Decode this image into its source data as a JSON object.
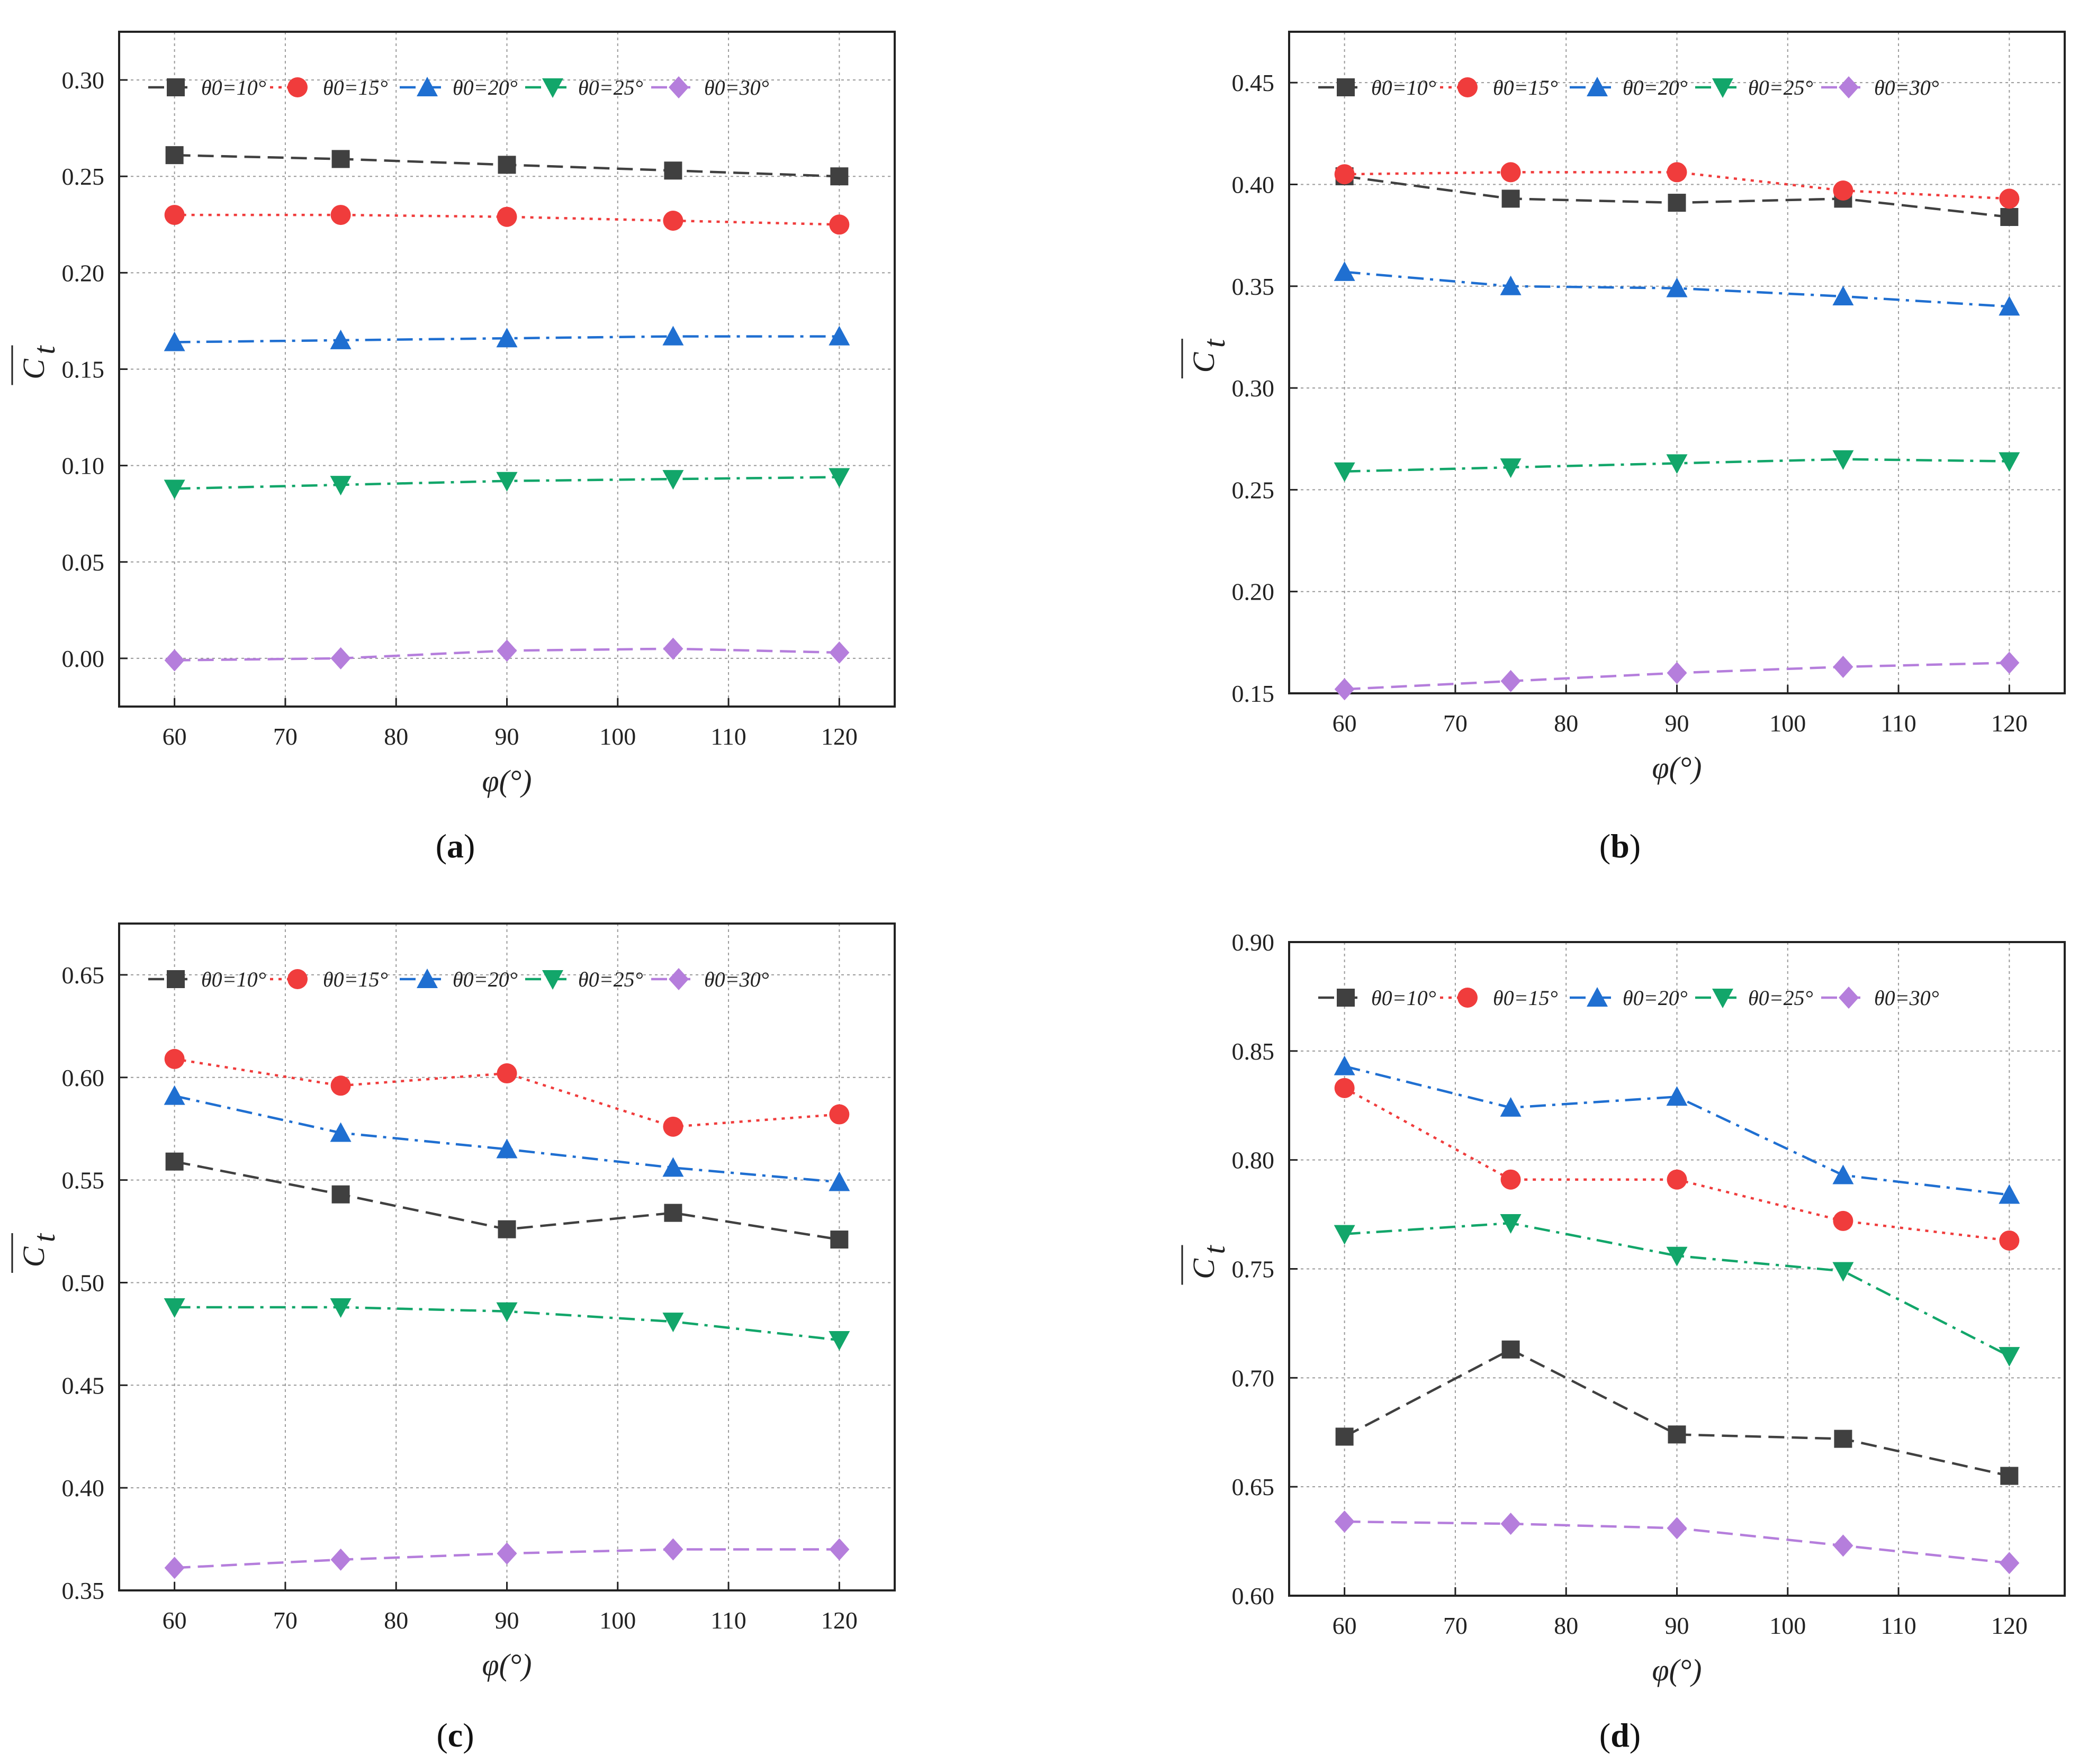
{
  "figure": {
    "series_names": [
      "θ0=10°",
      "θ0=15°",
      "θ0=20°",
      "θ0=25°",
      "θ0=30°"
    ],
    "series_styles": [
      {
        "color": "#404040",
        "marker": "square",
        "dash": "dashed"
      },
      {
        "color": "#F03C3C",
        "marker": "circle",
        "dash": "dotted"
      },
      {
        "color": "#1F6FD1",
        "marker": "triangle-up",
        "dash": "dash-dot"
      },
      {
        "color": "#12A66A",
        "marker": "triangle-down",
        "dash": "dash-dot"
      },
      {
        "color": "#B57EDC",
        "marker": "diamond",
        "dash": "dashed"
      }
    ]
  },
  "chart_data": [
    {
      "type": "line",
      "caption": "a",
      "xlabel": "φ(°)",
      "ylabel": "C",
      "ylabel_subscript": "t",
      "xlim": [
        55,
        125
      ],
      "ylim": [
        -0.025,
        0.325
      ],
      "xticks": [
        60,
        70,
        80,
        90,
        100,
        110,
        120
      ],
      "xtick_labels": [
        "60",
        "70",
        "80",
        "90",
        "100",
        "110",
        "120"
      ],
      "yticks": [
        0,
        0.05,
        0.1,
        0.15,
        0.2,
        0.25,
        0.3
      ],
      "ytick_labels": [
        "0.00",
        "0.05",
        "0.10",
        "0.15",
        "0.20",
        "0.25",
        "0.30"
      ],
      "grid": true,
      "legend": "top",
      "x": [
        60,
        75,
        90,
        105,
        120
      ],
      "series": [
        {
          "name": "θ0=10°",
          "values": [
            0.261,
            0.259,
            0.256,
            0.253,
            0.25
          ]
        },
        {
          "name": "θ0=15°",
          "values": [
            0.23,
            0.23,
            0.229,
            0.227,
            0.225
          ]
        },
        {
          "name": "θ0=20°",
          "values": [
            0.164,
            0.165,
            0.166,
            0.167,
            0.167
          ]
        },
        {
          "name": "θ0=25°",
          "values": [
            0.088,
            0.09,
            0.092,
            0.093,
            0.094
          ]
        },
        {
          "name": "θ0=30°",
          "values": [
            -0.001,
            0.0,
            0.004,
            0.005,
            0.003
          ]
        }
      ]
    },
    {
      "type": "line",
      "caption": "b",
      "xlabel": "φ(°)",
      "ylabel": "C",
      "ylabel_subscript": "t",
      "xlim": [
        55,
        125
      ],
      "ylim": [
        0.15,
        0.475
      ],
      "xticks": [
        60,
        70,
        80,
        90,
        100,
        110,
        120
      ],
      "xtick_labels": [
        "60",
        "70",
        "80",
        "90",
        "100",
        "110",
        "120"
      ],
      "yticks": [
        0.15,
        0.2,
        0.25,
        0.3,
        0.35,
        0.4,
        0.45
      ],
      "ytick_labels": [
        "0.15",
        "0.20",
        "0.25",
        "0.30",
        "0.35",
        "0.40",
        "0.45"
      ],
      "grid": true,
      "legend": "top",
      "x": [
        60,
        75,
        90,
        105,
        120
      ],
      "series": [
        {
          "name": "θ0=10°",
          "values": [
            0.404,
            0.393,
            0.391,
            0.393,
            0.384
          ]
        },
        {
          "name": "θ0=15°",
          "values": [
            0.405,
            0.406,
            0.406,
            0.397,
            0.393
          ]
        },
        {
          "name": "θ0=20°",
          "values": [
            0.357,
            0.35,
            0.349,
            0.345,
            0.34
          ]
        },
        {
          "name": "θ0=25°",
          "values": [
            0.259,
            0.261,
            0.263,
            0.265,
            0.264
          ]
        },
        {
          "name": "θ0=30°",
          "values": [
            0.152,
            0.156,
            0.16,
            0.163,
            0.165
          ]
        }
      ]
    },
    {
      "type": "line",
      "caption": "c",
      "xlabel": "φ(°)",
      "ylabel": "C",
      "ylabel_subscript": "t",
      "xlim": [
        55,
        125
      ],
      "ylim": [
        0.35,
        0.675
      ],
      "xticks": [
        60,
        70,
        80,
        90,
        100,
        110,
        120
      ],
      "xtick_labels": [
        "60",
        "70",
        "80",
        "90",
        "100",
        "110",
        "120"
      ],
      "yticks": [
        0.35,
        0.4,
        0.45,
        0.5,
        0.55,
        0.6,
        0.65
      ],
      "ytick_labels": [
        "0.35",
        "0.40",
        "0.45",
        "0.50",
        "0.55",
        "0.60",
        "0.65"
      ],
      "grid": true,
      "legend": "top",
      "x": [
        60,
        75,
        90,
        105,
        120
      ],
      "series": [
        {
          "name": "θ0=10°",
          "values": [
            0.559,
            0.543,
            0.526,
            0.534,
            0.521
          ]
        },
        {
          "name": "θ0=15°",
          "values": [
            0.609,
            0.596,
            0.602,
            0.576,
            0.582
          ]
        },
        {
          "name": "θ0=20°",
          "values": [
            0.591,
            0.573,
            0.565,
            0.556,
            0.549
          ]
        },
        {
          "name": "θ0=25°",
          "values": [
            0.488,
            0.488,
            0.486,
            0.481,
            0.472
          ]
        },
        {
          "name": "θ0=30°",
          "values": [
            0.361,
            0.365,
            0.368,
            0.37,
            0.37
          ]
        }
      ]
    },
    {
      "type": "line",
      "caption": "d",
      "xlabel": "φ(°)",
      "ylabel": "C",
      "ylabel_subscript": "t",
      "xlim": [
        55,
        125
      ],
      "ylim": [
        0.6,
        0.9
      ],
      "xticks": [
        60,
        70,
        80,
        90,
        100,
        110,
        120
      ],
      "xtick_labels": [
        "60",
        "70",
        "80",
        "90",
        "100",
        "110",
        "120"
      ],
      "yticks": [
        0.6,
        0.65,
        0.7,
        0.75,
        0.8,
        0.85,
        0.9
      ],
      "ytick_labels": [
        "0.60",
        "0.65",
        "0.70",
        "0.75",
        "0.80",
        "0.85",
        "0.90"
      ],
      "grid": true,
      "legend": "top",
      "x": [
        60,
        75,
        90,
        105,
        120
      ],
      "series": [
        {
          "name": "θ0=10°",
          "values": [
            0.673,
            0.713,
            0.674,
            0.672,
            0.655
          ]
        },
        {
          "name": "θ0=15°",
          "values": [
            0.833,
            0.791,
            0.791,
            0.772,
            0.763
          ]
        },
        {
          "name": "θ0=20°",
          "values": [
            0.843,
            0.824,
            0.829,
            0.793,
            0.784
          ]
        },
        {
          "name": "θ0=25°",
          "values": [
            0.766,
            0.771,
            0.756,
            0.749,
            0.71
          ]
        },
        {
          "name": "θ0=30°",
          "values": [
            0.634,
            0.633,
            0.631,
            0.623,
            0.615
          ]
        }
      ]
    }
  ]
}
